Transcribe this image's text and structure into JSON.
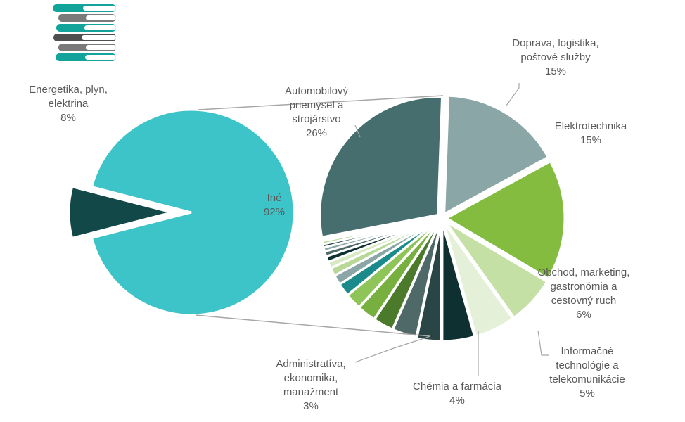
{
  "chart_data": {
    "type": "pie",
    "subtype": "pie-of-pie",
    "primary": [
      {
        "name": "Iné",
        "value": 92,
        "label": "Iné",
        "pct": "92%",
        "color": "#3cc4c8"
      },
      {
        "name": "Energetika, plyn, elektrina",
        "value": 8,
        "label": "Energetika, plyn, elektrina",
        "pct": "8%",
        "color": "#134848",
        "exploded": true
      }
    ],
    "secondary": [
      {
        "name": "Doprava, logistika, poštové služby",
        "value": 15,
        "pct": "15%",
        "color": "#8aa6a6",
        "labeled": true
      },
      {
        "name": "Elektrotechnika",
        "value": 15,
        "pct": "15%",
        "color": "#84bc40",
        "labeled": true
      },
      {
        "name": "Obchod, marketing, gastronómia a cestovný ruch",
        "value": 6,
        "pct": "6%",
        "color": "#c5e0a5",
        "labeled": true
      },
      {
        "name": "Informačné technológie a telekomunikácie",
        "value": 5,
        "pct": "5%",
        "color": "#e4f0d8",
        "labeled": true
      },
      {
        "name": "Chémia a farmácia",
        "value": 4,
        "pct": "4%",
        "color": "#0f3030",
        "labeled": true
      },
      {
        "name": "Administratíva, ekonomika, manažment",
        "value": 3,
        "pct": "3%",
        "color": "#2a4545",
        "labeled": true
      },
      {
        "name": "",
        "value": 3,
        "color": "#4f6868"
      },
      {
        "name": "",
        "value": 2.5,
        "color": "#4a7a2a"
      },
      {
        "name": "",
        "value": 2.3,
        "color": "#78b040"
      },
      {
        "name": "",
        "value": 2,
        "color": "#8fc458"
      },
      {
        "name": "",
        "value": 1.6,
        "color": "#1a8a8a"
      },
      {
        "name": "",
        "value": 1.2,
        "color": "#8aa6a6"
      },
      {
        "name": "",
        "value": 1,
        "color": "#b8d898"
      },
      {
        "name": "",
        "value": 0.8,
        "color": "#d8eac4"
      },
      {
        "name": "",
        "value": 0.7,
        "color": "#0f3030"
      },
      {
        "name": "",
        "value": 0.6,
        "color": "#4f6868"
      },
      {
        "name": "",
        "value": 0.5,
        "color": "#8aa6a6"
      },
      {
        "name": "",
        "value": 0.4,
        "color": "#2a4545"
      },
      {
        "name": "",
        "value": 0.4,
        "color": "#b8d898"
      },
      {
        "name": "Automobilový priemysel a strojárstvo",
        "value": 26,
        "pct": "26%",
        "color": "#466e6e",
        "labeled": true
      }
    ],
    "labels": {
      "energetika": [
        "Energetika, plyn,",
        "elektrina",
        "8%"
      ],
      "ine": [
        "Iné",
        "92%"
      ],
      "auto": [
        "Automobilový",
        "priemysel a",
        "strojárstvo",
        "26%"
      ],
      "doprava": [
        "Doprava, logistika,",
        "poštové služby",
        "15%"
      ],
      "elektro": [
        "Elektrotechnika",
        "15%"
      ],
      "obchod": [
        "Obchod, marketing,",
        "gastronómia a",
        "cestovný ruch",
        "6%"
      ],
      "info": [
        "Informačné",
        "technológie a",
        "telekomunikácie",
        "5%"
      ],
      "chemia": [
        "Chémia a farmácia",
        "4%"
      ],
      "admin": [
        "Administratíva,",
        "ekonomika,",
        "manažment",
        "3%"
      ]
    }
  }
}
